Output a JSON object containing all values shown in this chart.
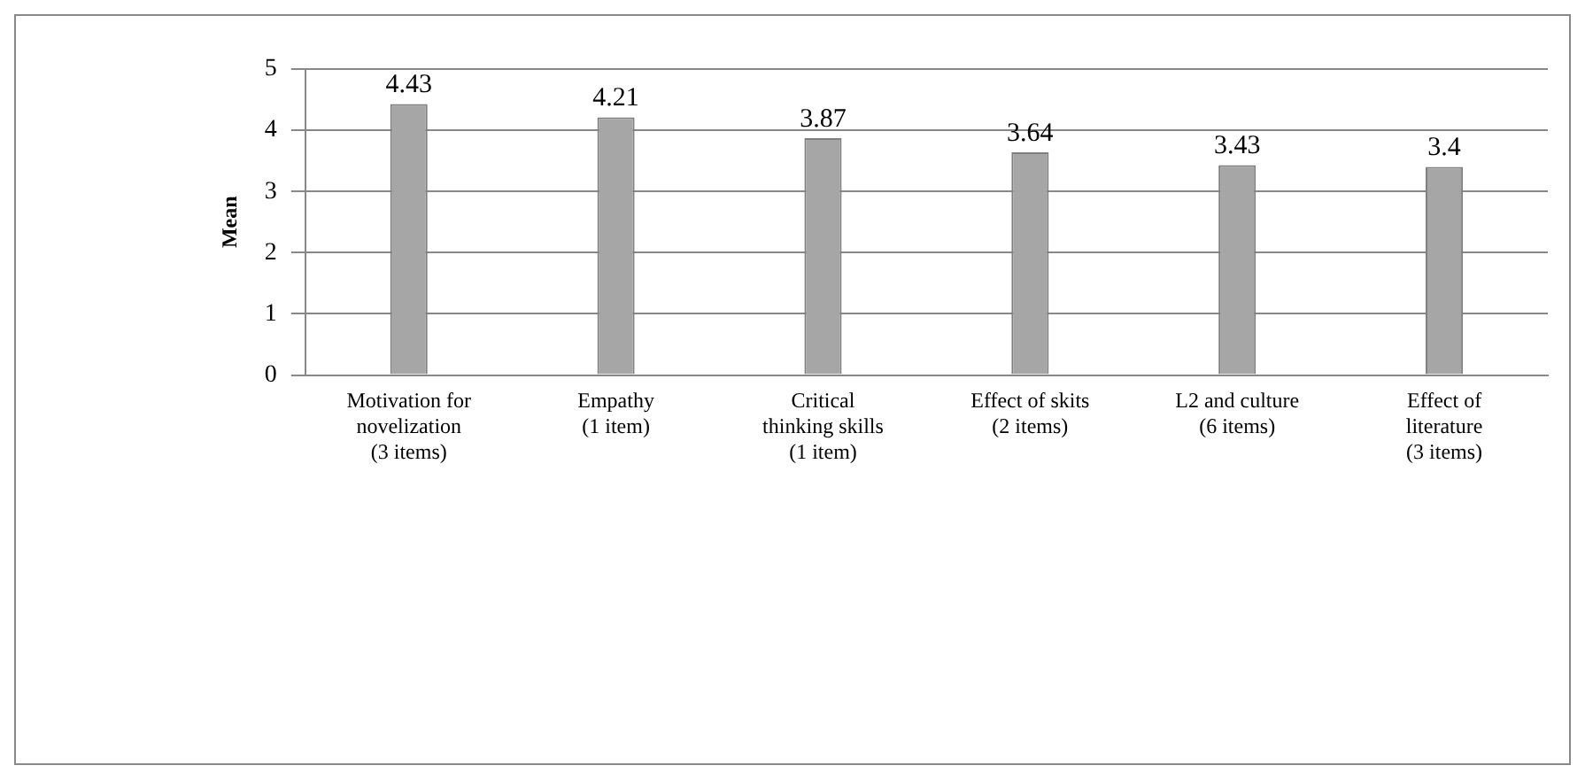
{
  "chart_data": {
    "type": "bar",
    "ylabel": "Mean",
    "categories": [
      "Motivation for novelization (3 items)",
      "Empathy (1 item)",
      "Critical thinking skills (1 item)",
      "Effect of skits (2 items)",
      "L2 and culture (6 items)",
      "Effect of literature (3 items)"
    ],
    "values": [
      4.43,
      4.21,
      3.87,
      3.64,
      3.43,
      3.4
    ],
    "color": "#a6a6a6",
    "ylim": [
      0,
      5
    ],
    "yticks": [
      0,
      1,
      2,
      3,
      4,
      5
    ],
    "grid": "y",
    "data_labels": true
  }
}
